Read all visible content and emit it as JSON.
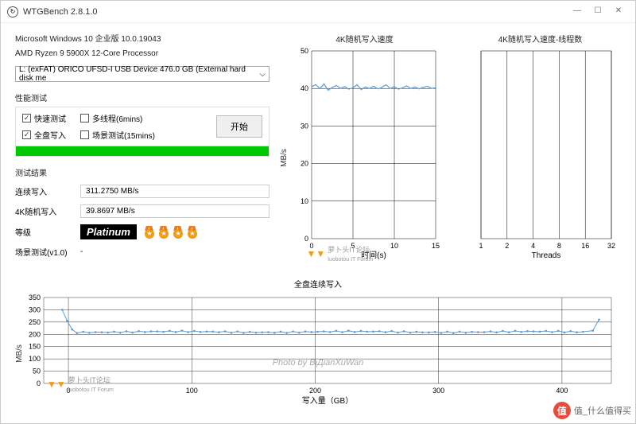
{
  "window": {
    "title": "WTGBench 2.8.1.0",
    "min": "—",
    "max": "☐",
    "close": "✕"
  },
  "sys": {
    "os": "Microsoft Windows 10 企业版 10.0.19043",
    "cpu": "AMD Ryzen 9 5900X 12-Core Processor"
  },
  "drive": "L: (exFAT) ORICO UFSD-I USB Device 476.0 GB (External hard disk me",
  "labels": {
    "perf": "性能测试",
    "results": "测试结果",
    "start": "开始",
    "opt_quick": "快速测试",
    "opt_multi": "多线程(6mins)",
    "opt_full": "全盘写入",
    "opt_scene": "场景测试(15mins)",
    "seq": "连续写入",
    "rand4k": "4K随机写入",
    "grade": "等级",
    "scene": "场景测试(v1.0)"
  },
  "results": {
    "seq": "311.2750 MB/s",
    "rand4k": "39.8697 MB/s",
    "grade": "Platinum",
    "scene": "-"
  },
  "medals": 4,
  "chart1": {
    "title": "4K随机写入速度",
    "ylabel": "MB/s",
    "xlabel": "时间(s)",
    "xlim": [
      0,
      15
    ],
    "ylim": [
      0,
      50
    ],
    "ytick": 10,
    "xtick": 5,
    "series_color": "#5b9bd5",
    "data": [
      [
        0,
        40.5
      ],
      [
        0.5,
        41
      ],
      [
        1,
        40
      ],
      [
        1.5,
        41.2
      ],
      [
        2,
        39.5
      ],
      [
        2.5,
        40.3
      ],
      [
        3,
        40.8
      ],
      [
        3.5,
        40
      ],
      [
        4,
        40.5
      ],
      [
        4.5,
        39.8
      ],
      [
        5,
        40.2
      ],
      [
        5.5,
        41
      ],
      [
        6,
        39.7
      ],
      [
        6.5,
        40.4
      ],
      [
        7,
        40
      ],
      [
        7.5,
        40.6
      ],
      [
        8,
        39.9
      ],
      [
        8.5,
        40.3
      ],
      [
        9,
        41
      ],
      [
        9.5,
        40
      ],
      [
        10,
        40.5
      ],
      [
        10.5,
        39.8
      ],
      [
        11,
        40.2
      ],
      [
        11.5,
        40.7
      ],
      [
        12,
        40
      ],
      [
        12.5,
        40.4
      ],
      [
        13,
        39.9
      ],
      [
        13.5,
        40.3
      ],
      [
        14,
        40.6
      ],
      [
        14.5,
        40
      ],
      [
        15,
        40.2
      ]
    ]
  },
  "chart2": {
    "title": "4K随机写入速度-线程数",
    "ylabel": "MB/s",
    "xlabel": "Threads",
    "xticks": [
      1,
      2,
      4,
      8,
      16,
      32
    ]
  },
  "chart3": {
    "title": "全盘连续写入",
    "ylabel": "MB/s",
    "xlabel": "写入量（GB）",
    "xlim": [
      -20,
      440
    ],
    "ylim": [
      0,
      350
    ],
    "ytick": 50,
    "xtick": 100,
    "series_color": "#5b9bd5",
    "start_vals": [
      300,
      255,
      220
    ],
    "plateau": 210,
    "end_vals": [
      215,
      260
    ]
  },
  "forum": {
    "name": "萝卜头IT论坛",
    "sub": "luobotou IT Forum"
  },
  "photoby": "Photo by BiДianXuWan",
  "cornerwm": "值_什么值得买"
}
